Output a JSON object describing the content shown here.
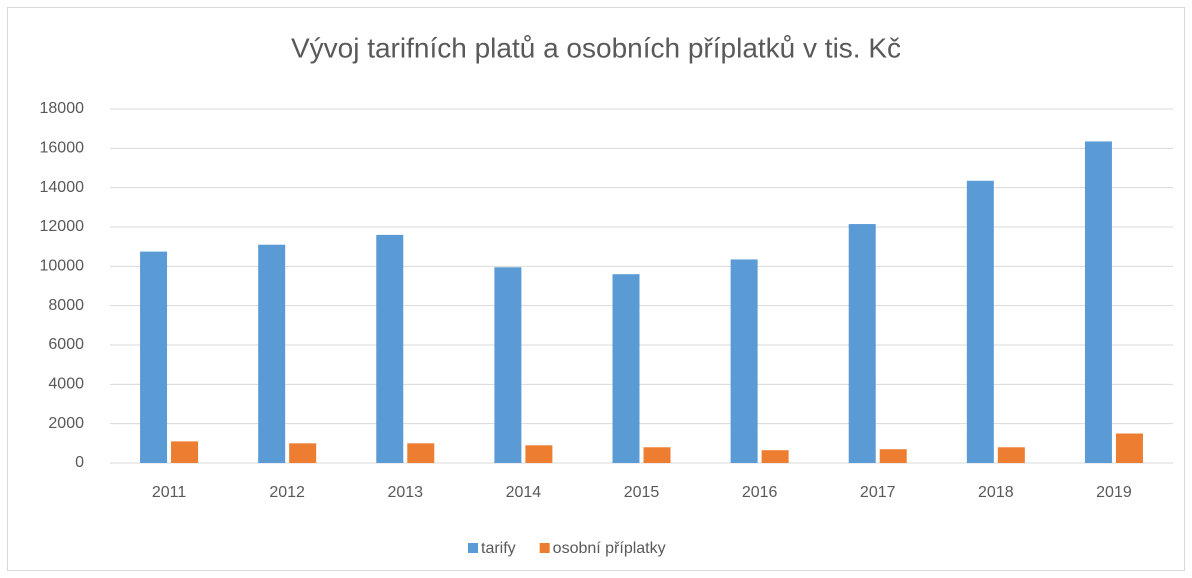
{
  "chart_data": {
    "type": "bar",
    "title": "Vývoj tarifních platů a osobních příplatků v tis. Kč",
    "categories": [
      "2011",
      "2012",
      "2013",
      "2014",
      "2015",
      "2016",
      "2017",
      "2018",
      "2019"
    ],
    "series": [
      {
        "name": "tarify",
        "color": "#5b9bd5",
        "values": [
          10750,
          11100,
          11600,
          9950,
          9600,
          10350,
          12150,
          14350,
          16350
        ]
      },
      {
        "name": "osobní příplatky",
        "color": "#ed7d31",
        "values": [
          1100,
          1000,
          1000,
          900,
          800,
          650,
          700,
          800,
          1500
        ]
      }
    ],
    "ylim": [
      0,
      18000
    ],
    "yticks": [
      0,
      2000,
      4000,
      6000,
      8000,
      10000,
      12000,
      14000,
      16000,
      18000
    ],
    "grid": true,
    "legend": "bottom"
  }
}
